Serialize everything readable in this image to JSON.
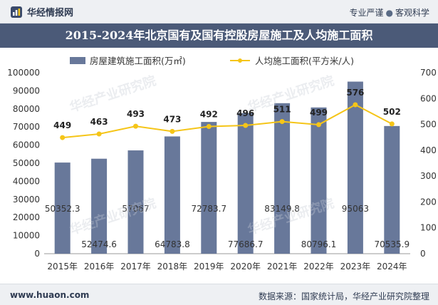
{
  "header": {
    "brand": "华经情报网",
    "tagline_left": "专业严谨",
    "tagline_sep": "●",
    "tagline_right": "客观科学",
    "title": "2015-2024年北京国有及国有控股房屋施工及人均施工面积"
  },
  "legend": {
    "bar": "房屋建筑施工面积(万㎡)",
    "line": "人均施工面积(平方米/人)"
  },
  "watermark": "华经产业研究院",
  "footer": {
    "site": "www.huaon.com",
    "source": "数据来源：国家统计局，华经产业研究院整理"
  },
  "colors": {
    "bar": "#68789a",
    "line": "#f5c518",
    "title_bg": "#4b5a78"
  },
  "chart_data": {
    "type": "bar",
    "title": "2015-2024年北京国有及国有控股房屋施工及人均施工面积",
    "categories": [
      "2015年",
      "2016年",
      "2017年",
      "2018年",
      "2019年",
      "2020年",
      "2021年",
      "2022年",
      "2023年",
      "2024年"
    ],
    "series": [
      {
        "name": "房屋建筑施工面积(万㎡)",
        "type": "bar",
        "axis": "left",
        "values": [
          50352.3,
          52474.6,
          57067,
          64783.8,
          72783.7,
          77686.7,
          83149.8,
          80796.1,
          95063,
          70535.9
        ],
        "labels": [
          "50352.3",
          "52474.6",
          "57067",
          "64783.8",
          "72783.7",
          "77686.7",
          "83149.8",
          "80796.1",
          "95063",
          "70535.9"
        ]
      },
      {
        "name": "人均施工面积(平方米/人)",
        "type": "line",
        "axis": "right",
        "values": [
          449,
          463,
          493,
          473,
          492,
          496,
          511,
          499,
          576,
          502
        ]
      }
    ],
    "ylim_left": [
      0,
      100000
    ],
    "ylim_right": [
      0,
      700
    ],
    "yticks_left": [
      "0",
      "10000",
      "20000",
      "30000",
      "40000",
      "50000",
      "60000",
      "70000",
      "80000",
      "90000",
      "100000"
    ],
    "yticks_right": [
      "0",
      "100",
      "200",
      "300",
      "400",
      "500",
      "600",
      "700"
    ]
  }
}
